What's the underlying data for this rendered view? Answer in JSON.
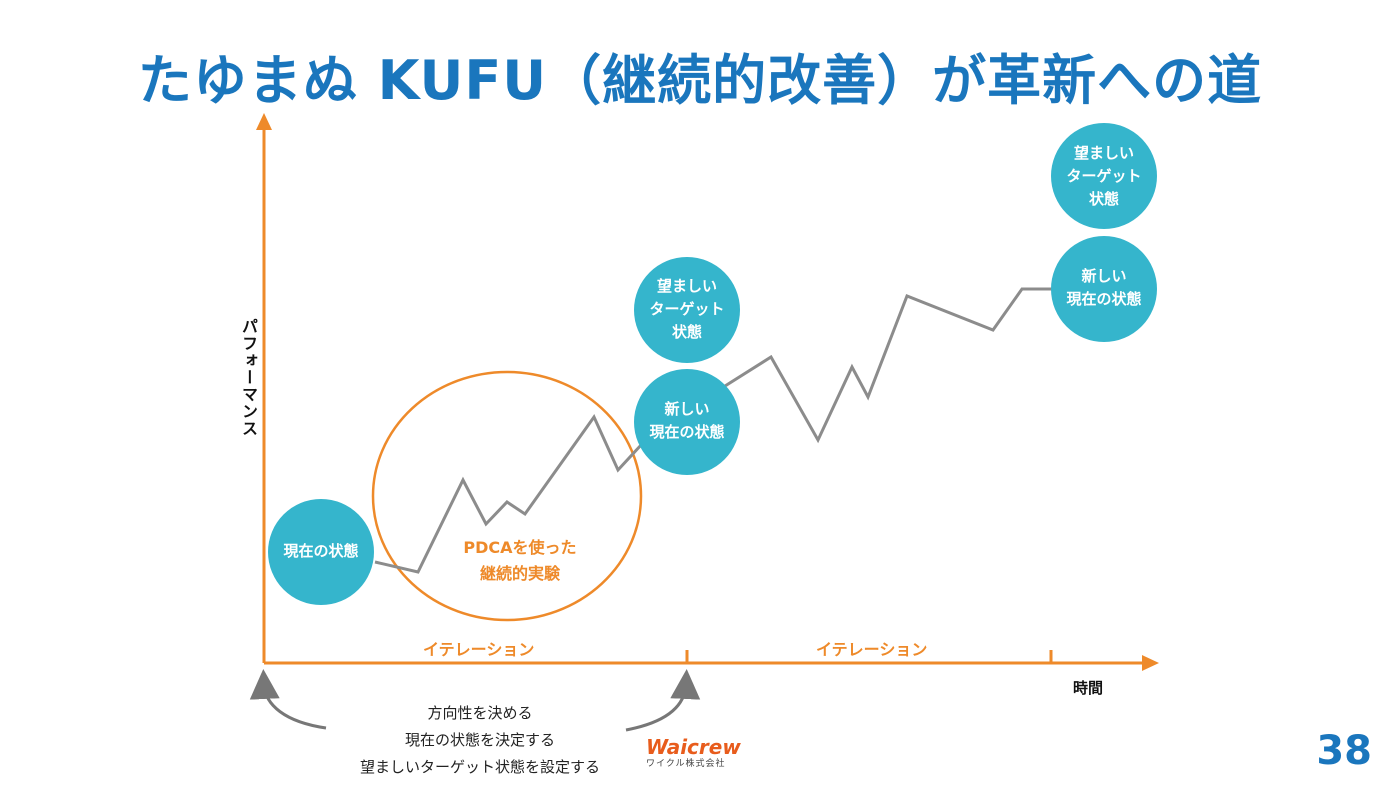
{
  "title": "たゆまぬ KUFU（継続的改善）が革新への道",
  "axes": {
    "y_label": "パフォーマンス",
    "x_label": "時間"
  },
  "circles": {
    "current": "現在の状態",
    "target1": "望ましい\nターゲット\n状態",
    "new1": "新しい\n現在の状態",
    "target2": "望ましい\nターゲット\n状態",
    "new2": "新しい\n現在の状態"
  },
  "pdca_label": "PDCAを使った\n継続的実験",
  "iterations": [
    "イテレーション",
    "イテレーション"
  ],
  "note": "方向性を決める\n現在の状態を決定する\n望ましいターゲット状態を設定する",
  "logo": {
    "name": "Waicrew",
    "sub": "ワイクル株式会社"
  },
  "page_number": "38",
  "colors": {
    "title": "#1a76bd",
    "circle": "#35b5cc",
    "axis": "#ee8a2a",
    "path": "#8c8c8c"
  }
}
